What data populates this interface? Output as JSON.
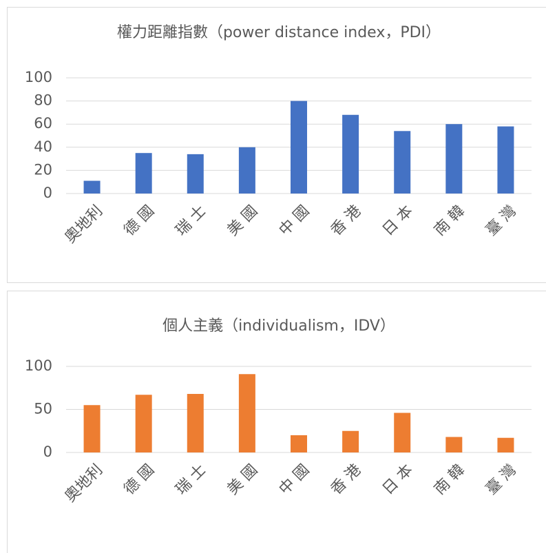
{
  "chart_data": [
    {
      "type": "bar",
      "title": "權力距離指數（power distance index，PDI）",
      "categories": [
        "奧地利",
        "德 國",
        "瑞 士",
        "美 國",
        "中 國",
        "香 港",
        "日 本",
        "南 韓",
        "臺 灣"
      ],
      "values": [
        11,
        35,
        34,
        40,
        80,
        68,
        54,
        60,
        58
      ],
      "color": "#4472c4",
      "ylim": [
        0,
        100
      ],
      "yticks": [
        0,
        20,
        40,
        60,
        80,
        100
      ],
      "grid": true
    },
    {
      "type": "bar",
      "title": "個人主義（individualism，IDV）",
      "categories": [
        "奧地利",
        "德 國",
        "瑞 士",
        "美 國",
        "中 國",
        "香 港",
        "日 本",
        "南 韓",
        "臺 灣"
      ],
      "values": [
        55,
        67,
        68,
        91,
        20,
        25,
        46,
        18,
        17
      ],
      "color": "#ed7d31",
      "ylim": [
        0,
        100
      ],
      "yticks": [
        0,
        50,
        100
      ],
      "grid": true
    }
  ]
}
